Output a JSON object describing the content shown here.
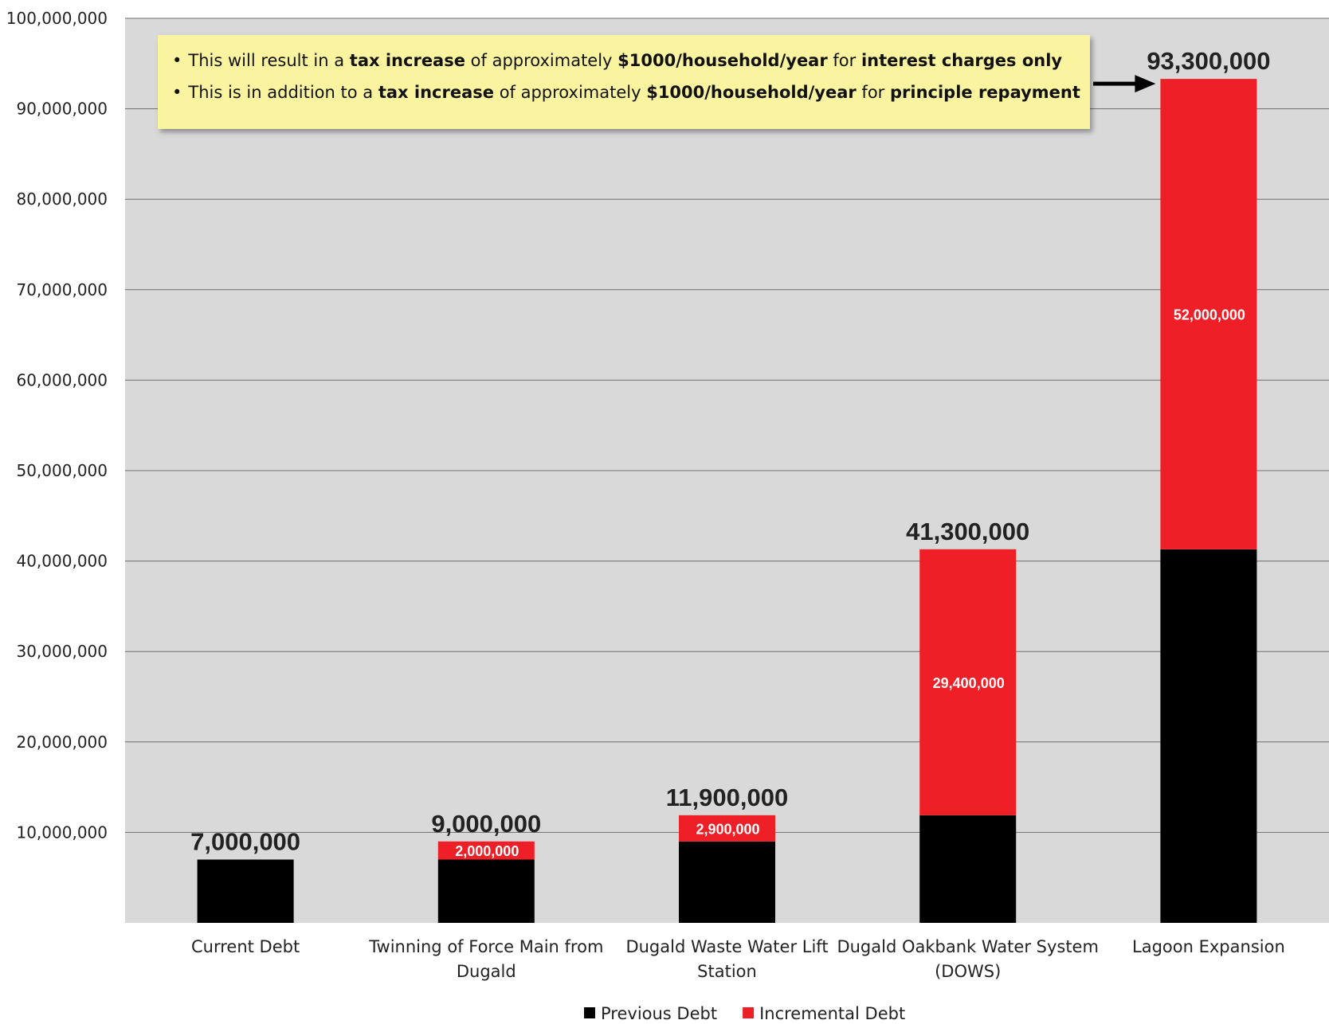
{
  "chart_data": {
    "type": "bar",
    "stacked": true,
    "categories": [
      "Current Debt",
      "Twinning of Force Main from Dugald",
      "Dugald Waste Water Lift Station",
      "Dugald Oakbank Water System (DOWS)",
      "Lagoon Expansion"
    ],
    "series": [
      {
        "name": "Previous Debt",
        "color": "#000000",
        "values": [
          7000000,
          7000000,
          9000000,
          11900000,
          41300000
        ]
      },
      {
        "name": "Incremental Debt",
        "color": "#ee1f26",
        "values": [
          0,
          2000000,
          2900000,
          29400000,
          52000000
        ]
      }
    ],
    "segment_labels": [
      "",
      "2,000,000",
      "2,900,000",
      "29,400,000",
      "52,000,000"
    ],
    "total_labels": [
      "7,000,000",
      "9,000,000",
      "11,900,000",
      "41,300,000",
      "93,300,000"
    ],
    "ylim": [
      0,
      100000000
    ],
    "yticks": [
      "10,000,000",
      "20,000,000",
      "30,000,000",
      "40,000,000",
      "50,000,000",
      "60,000,000",
      "70,000,000",
      "80,000,000",
      "90,000,000",
      "100,000,000"
    ],
    "grid": true,
    "plot_background": "#d9d9d9",
    "legend_position": "bottom",
    "title": "",
    "xlabel": "",
    "ylabel": ""
  },
  "callout": {
    "background": "#faf4a0",
    "arrow_points_to": "Lagoon Expansion",
    "lines": [
      [
        {
          "text": "This will result in a ",
          "bold": false
        },
        {
          "text": "tax increase",
          "bold": true
        },
        {
          "text": " of approximately ",
          "bold": false
        },
        {
          "text": "$1000/household/year",
          "bold": true
        },
        {
          "text": " for ",
          "bold": false
        },
        {
          "text": "interest charges only",
          "bold": true
        }
      ],
      [
        {
          "text": "This is in addition to a ",
          "bold": false
        },
        {
          "text": "tax increase",
          "bold": true
        },
        {
          "text": " of approximately ",
          "bold": false
        },
        {
          "text": "$1000/household/year",
          "bold": true
        },
        {
          "text": " for ",
          "bold": false
        },
        {
          "text": "principle repayment",
          "bold": true
        }
      ]
    ]
  }
}
